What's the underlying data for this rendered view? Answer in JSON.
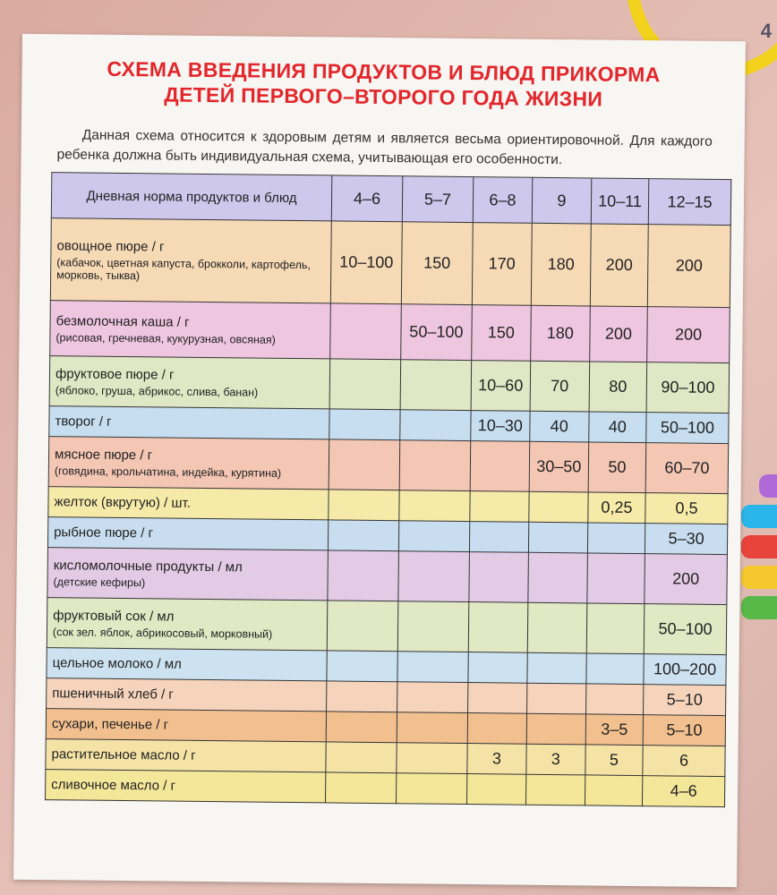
{
  "page_number": "4",
  "title_line1": "СХЕМА ВВЕДЕНИЯ ПРОДУКТОВ И БЛЮД ПРИКОРМА",
  "title_line2": "ДЕТЕЙ ПЕРВОГО–ВТОРОГО ГОДА ЖИЗНИ",
  "intro": "Данная схема относится к здоровым детям и является весьма ориентировочной. Для каждого ребенка должна быть индивидуальная схема, учитывающая его особенности.",
  "table": {
    "header": [
      "Дневная норма продуктов и блюд",
      "4–6",
      "5–7",
      "6–8",
      "9",
      "10–11",
      "12–15"
    ],
    "rows": [
      {
        "name": "овощное пюре / г",
        "sub": "(кабачок, цветная капуста, брокколи, картофель, морковь, тыква)",
        "values": [
          "10–100",
          "150",
          "170",
          "180",
          "200",
          "200"
        ],
        "color": "#f6d9b5"
      },
      {
        "name": "безмолочная каша / г",
        "sub": "(рисовая, гречневая, кукурузная, овсяная)",
        "values": [
          "",
          "50–100",
          "150",
          "180",
          "200",
          "200"
        ],
        "color": "#efc6e0"
      },
      {
        "name": "фруктовое пюре / г",
        "sub": "(яблоко, груша, абрикос, слива, банан)",
        "values": [
          "",
          "",
          "10–60",
          "70",
          "80",
          "90–100"
        ],
        "color": "#dfe7c4"
      },
      {
        "name": "творог / г",
        "sub": "",
        "values": [
          "",
          "",
          "10–30",
          "40",
          "40",
          "50–100"
        ],
        "color": "#c6def0"
      },
      {
        "name": "мясное пюре / г",
        "sub": "(говядина, крольчатина, индейка, курятина)",
        "values": [
          "",
          "",
          "",
          "30–50",
          "50",
          "60–70"
        ],
        "color": "#f4c6b4"
      },
      {
        "name": "желток (вкрутую) / шт.",
        "sub": "",
        "values": [
          "",
          "",
          "",
          "",
          "0,25",
          "0,5"
        ],
        "color": "#f6eaa8"
      },
      {
        "name": "рыбное пюре / г",
        "sub": "",
        "values": [
          "",
          "",
          "",
          "",
          "",
          "5–30"
        ],
        "color": "#c8def0"
      },
      {
        "name": "кисломолочные продукты / мл",
        "sub": "(детские кефиры)",
        "values": [
          "",
          "",
          "",
          "",
          "",
          "200"
        ],
        "color": "#e3cbe6"
      },
      {
        "name": "фруктовый сок / мл",
        "sub": "(сок зел. яблок, абрикосовый, морковный)",
        "values": [
          "",
          "",
          "",
          "",
          "",
          "50–100"
        ],
        "color": "#e0e8c4"
      },
      {
        "name": "цельное молоко / мл",
        "sub": "",
        "values": [
          "",
          "",
          "",
          "",
          "",
          "100–200"
        ],
        "color": "#cde2f0"
      },
      {
        "name": "пшеничный хлеб / г",
        "sub": "",
        "values": [
          "",
          "",
          "",
          "",
          "",
          "5–10"
        ],
        "color": "#f6d4bc"
      },
      {
        "name": "сухари, печенье / г",
        "sub": "",
        "values": [
          "",
          "",
          "",
          "",
          "3–5",
          "5–10"
        ],
        "color": "#f2c08f"
      },
      {
        "name": "растительное масло / г",
        "sub": "",
        "values": [
          "",
          "",
          "3",
          "3",
          "5",
          "6"
        ],
        "color": "#f5e3a6"
      },
      {
        "name": "сливочное масло / г",
        "sub": "",
        "values": [
          "",
          "",
          "",
          "",
          "",
          "4–6"
        ],
        "color": "#f5e79a"
      }
    ]
  },
  "colors": {
    "title": "#e3262b",
    "header_bg": "#cdc8ec"
  }
}
